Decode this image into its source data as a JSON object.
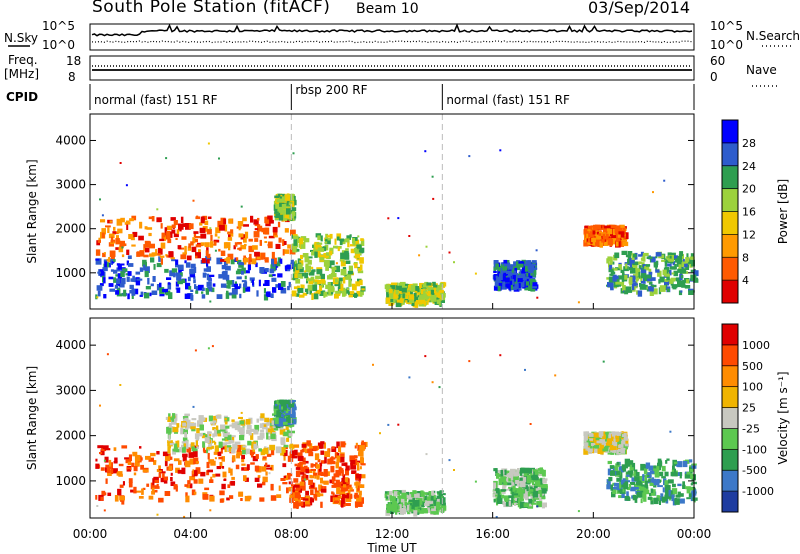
{
  "header": {
    "station": "South Pole Station (fitACF)",
    "beam": "Beam 10",
    "date": "03/Sep/2014"
  },
  "status_panels": {
    "nsky_label": "N.Sky",
    "nsearch_label": "N.Search",
    "freq_label": "Freq.",
    "freq_unit": "[MHz]",
    "nave_label": "Nave",
    "cpid_label": "CPID",
    "noise_ticks_left": [
      "10^5",
      "10^0"
    ],
    "noise_ticks_right": [
      "10^5",
      "10^0"
    ],
    "freq_ticks": [
      "18",
      "8"
    ],
    "nave_ticks": [
      "60",
      "0"
    ],
    "cpid_segments": [
      {
        "label": "normal (fast) 151 RF",
        "start": 0,
        "end": 8
      },
      {
        "label": "rbsp 200 RF",
        "start": 8,
        "end": 14
      },
      {
        "label": "normal (fast) 151 RF",
        "start": 14,
        "end": 24
      }
    ]
  },
  "chart_data": [
    {
      "type": "heatmap",
      "panel": "power",
      "ylabel": "Slant Range [km]",
      "xlim": [
        0,
        24
      ],
      "ylim": [
        180,
        4600
      ],
      "yticks": [
        1000,
        2000,
        3000,
        4000
      ],
      "colorbar": {
        "label": "Power [dB]",
        "ticks": [
          "28",
          "24",
          "20",
          "16",
          "12",
          "8",
          "4"
        ],
        "colors": [
          "#e00000",
          "#ff5a00",
          "#ff9a00",
          "#f0c800",
          "#9cd23c",
          "#2e9e50",
          "#2e5ccc",
          "#0000ff"
        ]
      },
      "regions": [
        {
          "t": [
            0.2,
            8.0
          ],
          "r": [
            500,
            1400
          ],
          "level": 6
        },
        {
          "t": [
            0.2,
            8.0
          ],
          "r": [
            1300,
            2300
          ],
          "level": 1
        },
        {
          "t": [
            7.3,
            8.0
          ],
          "r": [
            2300,
            2800
          ],
          "level": 4
        },
        {
          "t": [
            8.0,
            10.8
          ],
          "r": [
            500,
            1900
          ],
          "level": 4
        },
        {
          "t": [
            11.7,
            14.0
          ],
          "r": [
            350,
            800
          ],
          "level": 4
        },
        {
          "t": [
            16.0,
            17.6
          ],
          "r": [
            700,
            1300
          ],
          "level": 6
        },
        {
          "t": [
            19.6,
            21.2
          ],
          "r": [
            1700,
            2100
          ],
          "level": 1
        },
        {
          "t": [
            20.5,
            24.0
          ],
          "r": [
            600,
            1500
          ],
          "level": 5
        }
      ]
    },
    {
      "type": "heatmap",
      "panel": "velocity",
      "ylabel": "Slant Range [km]",
      "xlabel": "Time UT",
      "xlim": [
        0,
        24
      ],
      "ylim": [
        180,
        4600
      ],
      "yticks": [
        1000,
        2000,
        3000,
        4000
      ],
      "xticks": [
        "00:00",
        "04:00",
        "08:00",
        "12:00",
        "16:00",
        "20:00",
        "00:00"
      ],
      "colorbar": {
        "label": "Velocity [m s⁻¹]",
        "ticks": [
          "1000",
          "500",
          "100",
          "25",
          "-25",
          "-100",
          "-500",
          "-1000"
        ],
        "colors": [
          "#1e3ca0",
          "#3c78c8",
          "#2e9e50",
          "#5cc850",
          "#c8c8c0",
          "#f0b400",
          "#ff8c00",
          "#ff4a00",
          "#e00000"
        ]
      },
      "regions": [
        {
          "t": [
            0.2,
            8.0
          ],
          "r": [
            600,
            1800
          ],
          "level": 7
        },
        {
          "t": [
            3.0,
            8.0
          ],
          "r": [
            1700,
            2500
          ],
          "level": 4
        },
        {
          "t": [
            7.3,
            8.0
          ],
          "r": [
            2300,
            2800
          ],
          "level": 2
        },
        {
          "t": [
            8.0,
            10.8
          ],
          "r": [
            500,
            1900
          ],
          "level": 7
        },
        {
          "t": [
            11.7,
            14.0
          ],
          "r": [
            350,
            800
          ],
          "level": 3
        },
        {
          "t": [
            16.0,
            18.0
          ],
          "r": [
            500,
            1300
          ],
          "level": 3
        },
        {
          "t": [
            19.6,
            21.2
          ],
          "r": [
            1700,
            2100
          ],
          "level": 4
        },
        {
          "t": [
            20.5,
            24.0
          ],
          "r": [
            600,
            1500
          ],
          "level": 2
        }
      ]
    }
  ]
}
